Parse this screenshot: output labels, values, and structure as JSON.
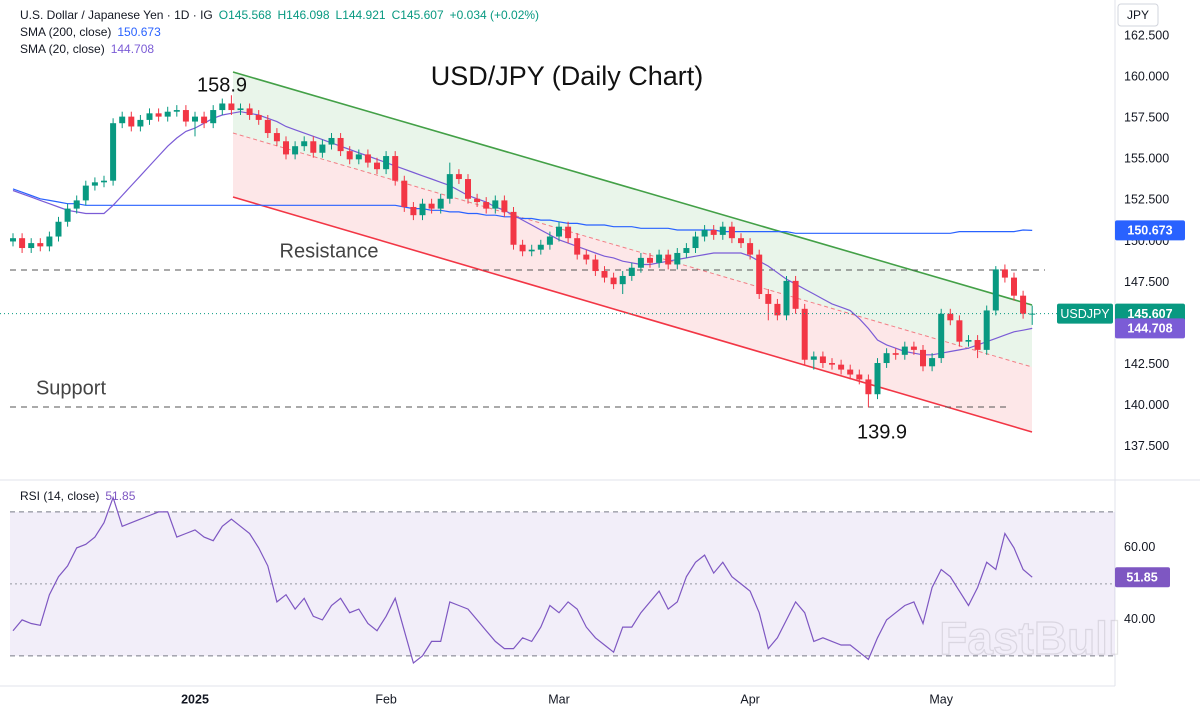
{
  "chart_data": [
    {
      "type": "candlestick",
      "title": "USD/JPY (Daily Chart)",
      "symbol": "U.S. Dollar / Japanese Yen · 1D · IG",
      "ohlc_labels": [
        "O145.568",
        "H146.098",
        "L144.921",
        "C145.607",
        "+0.034 (+0.02%)"
      ],
      "currency": "JPY",
      "categories": [
        null,
        null,
        null,
        null,
        null,
        null,
        null,
        null,
        null,
        null,
        null,
        null,
        null,
        null,
        null,
        null,
        null,
        null,
        null,
        null,
        "2025",
        null,
        null,
        null,
        null,
        null,
        null,
        null,
        null,
        null,
        null,
        null,
        null,
        null,
        null,
        null,
        null,
        null,
        null,
        null,
        null,
        "Feb",
        null,
        null,
        null,
        null,
        null,
        null,
        null,
        null,
        null,
        null,
        null,
        null,
        null,
        null,
        null,
        null,
        null,
        null,
        "Mar",
        null,
        null,
        null,
        null,
        null,
        null,
        null,
        null,
        null,
        null,
        null,
        null,
        null,
        null,
        null,
        null,
        null,
        null,
        null,
        null,
        "Apr",
        null,
        null,
        null,
        null,
        null,
        null,
        null,
        null,
        null,
        null,
        null,
        null,
        null,
        null,
        null,
        null,
        null,
        null,
        null,
        null,
        "May",
        null,
        null,
        null,
        null,
        null,
        null,
        null,
        null,
        null,
        null
      ],
      "series": [
        {
          "name": "USDJPY",
          "value_label": "145.607",
          "up_color": "#089981",
          "down_color": "#f23645",
          "open": [
            150.0,
            150.2,
            149.6,
            149.9,
            149.7,
            150.3,
            151.2,
            152.0,
            152.5,
            153.4,
            153.6,
            153.7,
            157.2,
            157.6,
            157.0,
            157.4,
            157.8,
            157.6,
            157.9,
            158.0,
            157.3,
            157.6,
            157.2,
            158.0,
            158.4,
            158.0,
            158.1,
            157.7,
            157.4,
            156.6,
            156.1,
            155.3,
            155.8,
            156.1,
            155.4,
            155.9,
            156.3,
            155.5,
            155.0,
            155.3,
            154.8,
            154.4,
            155.2,
            153.7,
            152.1,
            151.6,
            152.3,
            152.0,
            152.6,
            154.1,
            153.8,
            152.6,
            152.4,
            152.0,
            152.5,
            151.8,
            149.8,
            149.4,
            149.5,
            149.8,
            150.3,
            150.9,
            150.2,
            149.2,
            148.9,
            148.2,
            147.8,
            147.4,
            147.9,
            148.4,
            149.0,
            148.7,
            149.2,
            148.6,
            149.3,
            149.6,
            150.3,
            150.7,
            150.4,
            150.9,
            150.2,
            149.9,
            149.2,
            146.8,
            146.2,
            145.5,
            147.6,
            145.9,
            142.8,
            143.0,
            142.6,
            142.5,
            142.2,
            141.9,
            141.6,
            140.7,
            142.6,
            143.2,
            143.1,
            143.6,
            143.4,
            142.4,
            142.9,
            145.6,
            145.2,
            143.9,
            144.0,
            143.4,
            145.8,
            148.3,
            147.8,
            146.7,
            145.568
          ],
          "high": [
            150.5,
            150.5,
            150.2,
            150.2,
            150.6,
            151.5,
            152.3,
            152.8,
            153.7,
            153.9,
            154.0,
            157.5,
            157.9,
            157.9,
            157.7,
            158.1,
            158.1,
            158.2,
            158.3,
            158.3,
            157.9,
            157.9,
            158.3,
            158.7,
            158.9,
            158.4,
            158.4,
            158.0,
            157.7,
            156.9,
            156.4,
            156.1,
            156.4,
            156.4,
            156.2,
            156.6,
            156.6,
            155.8,
            155.6,
            155.6,
            155.1,
            155.5,
            155.5,
            154.0,
            152.4,
            152.6,
            152.6,
            152.9,
            154.8,
            154.4,
            154.1,
            152.9,
            152.7,
            152.8,
            152.8,
            152.1,
            150.1,
            149.8,
            150.1,
            150.6,
            151.2,
            151.2,
            150.5,
            149.5,
            149.2,
            148.5,
            148.1,
            148.2,
            148.7,
            149.3,
            149.3,
            149.5,
            149.5,
            149.6,
            149.9,
            150.6,
            151.0,
            151.0,
            151.2,
            151.2,
            150.5,
            150.2,
            149.5,
            147.1,
            146.5,
            147.9,
            147.9,
            146.2,
            143.3,
            143.3,
            142.9,
            142.8,
            142.5,
            142.2,
            141.9,
            142.9,
            143.5,
            143.5,
            143.9,
            143.9,
            143.7,
            143.2,
            145.9,
            145.9,
            145.5,
            144.3,
            144.3,
            146.1,
            148.5,
            148.6,
            148.1,
            147.0,
            146.098
          ],
          "low": [
            149.7,
            149.3,
            149.3,
            149.4,
            149.4,
            150.0,
            150.9,
            151.7,
            152.2,
            153.1,
            153.3,
            153.4,
            156.9,
            156.7,
            156.7,
            157.1,
            157.3,
            157.3,
            157.6,
            157.0,
            156.4,
            156.9,
            156.9,
            157.7,
            157.7,
            157.7,
            157.4,
            157.1,
            156.3,
            155.8,
            155.0,
            155.0,
            155.5,
            155.1,
            155.1,
            155.6,
            155.2,
            154.7,
            154.7,
            154.5,
            154.1,
            154.1,
            153.4,
            151.8,
            151.3,
            151.3,
            151.7,
            151.7,
            152.3,
            153.5,
            152.3,
            152.1,
            151.7,
            151.7,
            151.5,
            149.5,
            149.1,
            149.1,
            149.2,
            149.5,
            150.0,
            149.9,
            148.9,
            148.6,
            147.9,
            147.5,
            147.1,
            146.8,
            147.6,
            148.1,
            148.4,
            148.4,
            148.3,
            148.3,
            149.0,
            149.3,
            150.0,
            150.1,
            150.1,
            149.9,
            149.6,
            148.9,
            146.5,
            145.2,
            145.2,
            145.2,
            145.6,
            142.5,
            142.2,
            142.3,
            142.2,
            141.9,
            141.6,
            141.3,
            139.9,
            140.4,
            142.3,
            142.8,
            142.8,
            143.1,
            142.1,
            142.1,
            142.6,
            144.9,
            143.6,
            143.6,
            142.9,
            143.1,
            145.5,
            147.5,
            146.4,
            145.3,
            144.921
          ],
          "close": [
            150.2,
            149.6,
            149.9,
            149.7,
            150.3,
            151.2,
            152.0,
            152.5,
            153.4,
            153.6,
            153.7,
            157.2,
            157.6,
            157.0,
            157.4,
            157.8,
            157.6,
            157.9,
            158.0,
            157.3,
            157.6,
            157.2,
            158.0,
            158.4,
            158.0,
            158.1,
            157.7,
            157.4,
            156.6,
            156.1,
            155.3,
            155.8,
            156.1,
            155.4,
            155.9,
            156.3,
            155.5,
            155.0,
            155.3,
            154.8,
            154.4,
            155.2,
            153.7,
            152.1,
            151.6,
            152.3,
            152.0,
            152.6,
            154.1,
            153.8,
            152.6,
            152.4,
            152.0,
            152.5,
            151.8,
            149.8,
            149.4,
            149.5,
            149.8,
            150.3,
            150.9,
            150.2,
            149.2,
            148.9,
            148.2,
            147.8,
            147.4,
            147.9,
            148.4,
            149.0,
            148.7,
            149.2,
            148.6,
            149.3,
            149.6,
            150.3,
            150.7,
            150.4,
            150.9,
            150.2,
            149.9,
            149.2,
            146.8,
            146.2,
            145.5,
            147.6,
            145.9,
            142.8,
            143.0,
            142.6,
            142.5,
            142.2,
            141.9,
            141.6,
            140.7,
            142.6,
            143.2,
            143.1,
            143.6,
            143.4,
            142.4,
            142.9,
            145.6,
            145.2,
            143.9,
            144.0,
            143.4,
            145.8,
            148.3,
            147.8,
            146.7,
            145.6,
            145.607
          ]
        }
      ],
      "lines": [
        {
          "name": "SMA (200, close)",
          "color": "#2962ff",
          "value_label": "150.673",
          "values": [
            153.2,
            153.0,
            152.8,
            152.6,
            152.5,
            152.4,
            152.3,
            152.3,
            152.2,
            152.2,
            152.2,
            152.2,
            152.2,
            152.2,
            152.2,
            152.2,
            152.2,
            152.2,
            152.2,
            152.2,
            152.2,
            152.2,
            152.2,
            152.2,
            152.2,
            152.2,
            152.2,
            152.2,
            152.2,
            152.2,
            152.2,
            152.2,
            152.2,
            152.2,
            152.2,
            152.2,
            152.2,
            152.2,
            152.2,
            152.2,
            152.2,
            152.2,
            152.2,
            152.1,
            152.0,
            152.0,
            151.9,
            151.9,
            151.8,
            151.8,
            151.7,
            151.7,
            151.6,
            151.6,
            151.5,
            151.5,
            151.4,
            151.4,
            151.3,
            151.3,
            151.2,
            151.1,
            151.1,
            151.0,
            151.0,
            151.0,
            150.9,
            150.9,
            150.9,
            150.8,
            150.8,
            150.8,
            150.8,
            150.7,
            150.7,
            150.7,
            150.7,
            150.7,
            150.6,
            150.6,
            150.6,
            150.6,
            150.6,
            150.6,
            150.6,
            150.6,
            150.5,
            150.5,
            150.5,
            150.5,
            150.5,
            150.5,
            150.5,
            150.5,
            150.5,
            150.5,
            150.5,
            150.5,
            150.5,
            150.5,
            150.5,
            150.5,
            150.5,
            150.5,
            150.6,
            150.6,
            150.6,
            150.6,
            150.6,
            150.6,
            150.6,
            150.7,
            150.673
          ]
        },
        {
          "name": "SMA (20, close)",
          "color": "#7b5cd6",
          "value_label": "144.708",
          "values": [
            153.1,
            152.9,
            152.7,
            152.5,
            152.3,
            152.1,
            151.9,
            151.8,
            151.7,
            151.7,
            151.7,
            152.2,
            152.8,
            153.4,
            154.0,
            154.6,
            155.2,
            155.8,
            156.3,
            156.7,
            156.9,
            157.2,
            157.5,
            157.7,
            157.8,
            157.9,
            157.8,
            157.7,
            157.5,
            157.3,
            157.0,
            156.8,
            156.6,
            156.4,
            156.2,
            156.0,
            155.8,
            155.6,
            155.4,
            155.2,
            155.0,
            154.8,
            154.6,
            154.4,
            154.2,
            154.0,
            153.8,
            153.6,
            153.4,
            153.1,
            152.8,
            152.6,
            152.4,
            152.1,
            151.9,
            151.6,
            151.3,
            151.0,
            150.7,
            150.4,
            150.1,
            149.9,
            149.7,
            149.5,
            149.3,
            149.1,
            149.0,
            148.8,
            148.7,
            148.6,
            148.6,
            148.7,
            148.8,
            148.9,
            149.0,
            149.1,
            149.2,
            149.3,
            149.3,
            149.3,
            149.3,
            149.1,
            148.8,
            148.5,
            148.1,
            147.7,
            147.4,
            147.1,
            146.8,
            146.5,
            146.2,
            146.0,
            145.8,
            145.3,
            144.7,
            144.0,
            143.7,
            143.5,
            143.3,
            143.2,
            143.1,
            143.1,
            143.2,
            143.3,
            143.4,
            143.5,
            143.7,
            143.9,
            144.1,
            144.3,
            144.5,
            144.6,
            144.708
          ]
        }
      ],
      "annotations": {
        "high": "158.9",
        "low": "139.9",
        "resistance": "Resistance",
        "support": "Support"
      },
      "ylim": [
        135.6,
        164.7
      ],
      "yticks": [
        {
          "value": 137.5,
          "label": "137.500"
        },
        {
          "value": 140,
          "label": "140.000"
        },
        {
          "value": 142.5,
          "label": "142.500"
        },
        {
          "value": 145,
          "label": "145.000"
        },
        {
          "value": 147.5,
          "label": "147.500"
        },
        {
          "value": 150,
          "label": "150.000"
        },
        {
          "value": 152.5,
          "label": "152.500"
        },
        {
          "value": 155,
          "label": "155.000"
        },
        {
          "value": 157.5,
          "label": "157.500"
        },
        {
          "value": 160,
          "label": "160.000"
        },
        {
          "value": 162.5,
          "label": "162.500"
        }
      ],
      "watermark": "FastBull"
    },
    {
      "type": "line",
      "series": [
        {
          "name": "RSI (14, close)",
          "color": "#7e57c2",
          "value_label": "51.85",
          "values": [
            37,
            40,
            39,
            38.5,
            47,
            52,
            55,
            60,
            61,
            63,
            67,
            74,
            66,
            67,
            68,
            69,
            70,
            70,
            63,
            64,
            65,
            63,
            62,
            66,
            68,
            66,
            64,
            60,
            55,
            45,
            47,
            43,
            46,
            41,
            40,
            44,
            46,
            42,
            43,
            39,
            37,
            41,
            46,
            37,
            28,
            30,
            34,
            34,
            45,
            44,
            43,
            40,
            37,
            34,
            32,
            32,
            35,
            34,
            38,
            44,
            42,
            45,
            43,
            38,
            35,
            33,
            31,
            38,
            38,
            42,
            45,
            48,
            43,
            45,
            52,
            56,
            58,
            53,
            56,
            52,
            50,
            48,
            42,
            32,
            35,
            40,
            45,
            42,
            34,
            35,
            34,
            33,
            33,
            31,
            29,
            35,
            40,
            42,
            44,
            45,
            39,
            49,
            54,
            52,
            48,
            44,
            49,
            56,
            54,
            64,
            60,
            54,
            51.85
          ]
        }
      ],
      "band": [
        30,
        70
      ],
      "midline": 50,
      "ylim": [
        21.9,
        78.3
      ],
      "yticks": [
        {
          "value": 40,
          "label": "40.00"
        },
        {
          "value": 60,
          "label": "60.00"
        }
      ]
    }
  ]
}
